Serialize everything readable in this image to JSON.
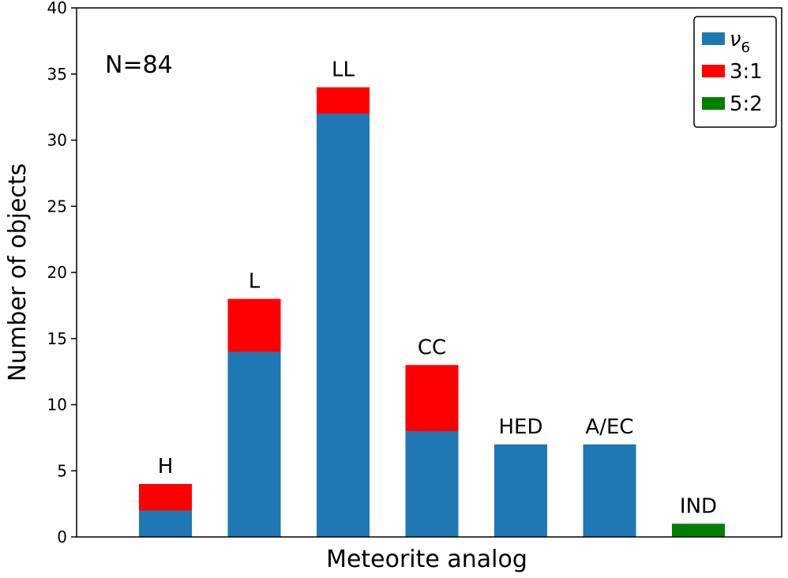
{
  "chart_data": {
    "type": "bar",
    "stacked": true,
    "xlabel": "Meteorite analog",
    "ylabel": "Number of objects",
    "ylim": [
      0,
      40
    ],
    "yticks": [
      0,
      5,
      10,
      15,
      20,
      25,
      30,
      35,
      40
    ],
    "annotation": "N=84",
    "categories": [
      "H",
      "L",
      "LL",
      "CC",
      "HED",
      "A/EC",
      "IND"
    ],
    "series": [
      {
        "name": "ν6",
        "name_main": "ν",
        "name_sub": "6",
        "color": "#1f77b4",
        "values": [
          2,
          14,
          32,
          8,
          7,
          7,
          0
        ]
      },
      {
        "name": "3:1",
        "color": "#ff0000",
        "values": [
          2,
          4,
          2,
          5,
          0,
          0,
          0
        ]
      },
      {
        "name": "5:2",
        "color": "#008000",
        "values": [
          0,
          0,
          0,
          0,
          0,
          0,
          1
        ]
      }
    ],
    "legend_position": "top-right",
    "grid": false
  }
}
